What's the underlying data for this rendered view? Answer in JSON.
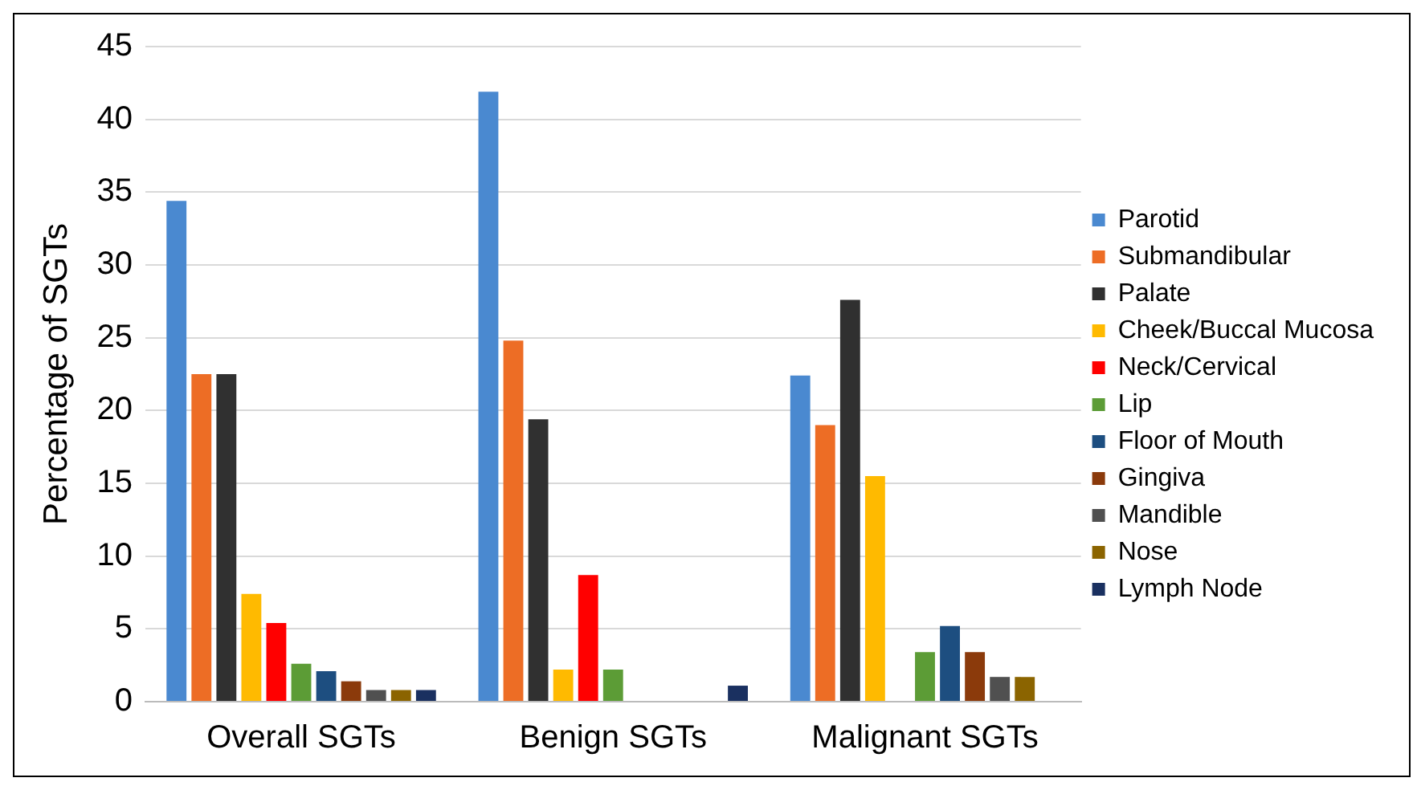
{
  "chart_data": {
    "type": "bar",
    "ylabel": "Percentage of SGTs",
    "categories": [
      "Overall SGTs",
      "Benign SGTs",
      "Malignant SGTs"
    ],
    "series": [
      {
        "name": "Parotid",
        "color": "#4a89d0",
        "values": [
          34.4,
          41.9,
          22.4
        ]
      },
      {
        "name": "Submandibular",
        "color": "#ed6d25",
        "values": [
          22.5,
          24.8,
          19.0
        ]
      },
      {
        "name": "Palate",
        "color": "#303030",
        "values": [
          22.5,
          19.4,
          27.6
        ]
      },
      {
        "name": "Cheek/Buccal Mucosa",
        "color": "#ffba00",
        "values": [
          7.4,
          2.2,
          15.5
        ]
      },
      {
        "name": "Neck/Cervical",
        "color": "#ff0000",
        "values": [
          5.4,
          8.7,
          0
        ]
      },
      {
        "name": "Lip",
        "color": "#5c9c36",
        "values": [
          2.6,
          2.2,
          3.4
        ]
      },
      {
        "name": "Floor of Mouth",
        "color": "#1d4e80",
        "values": [
          2.1,
          0,
          5.2
        ]
      },
      {
        "name": "Gingiva",
        "color": "#8b3a0b",
        "values": [
          1.4,
          0,
          3.4
        ]
      },
      {
        "name": "Mandible",
        "color": "#505050",
        "values": [
          0.8,
          0,
          1.7
        ]
      },
      {
        "name": "Nose",
        "color": "#8b6400",
        "values": [
          0.8,
          0,
          1.7
        ]
      },
      {
        "name": "Lymph Node",
        "color": "#1a3060",
        "values": [
          0.8,
          1.1,
          0
        ]
      }
    ],
    "ylim": [
      0,
      45
    ],
    "yticks": [
      0,
      5,
      10,
      15,
      20,
      25,
      30,
      35,
      40,
      45
    ],
    "grid": "y",
    "legend": "right"
  }
}
